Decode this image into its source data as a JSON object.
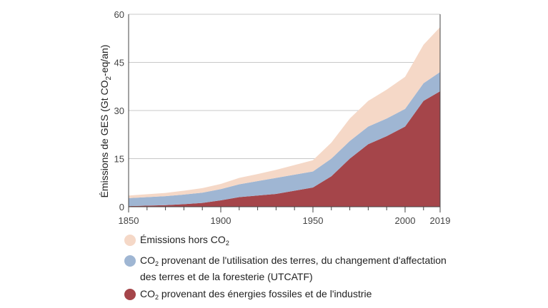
{
  "chart_data": {
    "type": "area",
    "stacked": true,
    "ylabel_parts": [
      "Émissions de GES (Gt CO",
      "2",
      "-eq/an)"
    ],
    "ylim": [
      0,
      60
    ],
    "yticks": [
      0,
      15,
      30,
      45,
      60
    ],
    "xlim": [
      1850,
      2019
    ],
    "xticks": [
      1850,
      1900,
      1950,
      2000,
      2019
    ],
    "grid": true,
    "legend_position": "bottom",
    "x": [
      1850,
      1870,
      1880,
      1890,
      1900,
      1910,
      1920,
      1930,
      1940,
      1950,
      1960,
      1970,
      1980,
      1990,
      2000,
      2010,
      2019
    ],
    "series": [
      {
        "key": "fossil",
        "name_parts": [
          "CO",
          "2",
          " provenant des énergies fossiles et de l'industrie"
        ],
        "color": "#a5454a",
        "values": [
          0.2,
          0.5,
          0.8,
          1.2,
          2,
          3,
          3.5,
          4,
          5,
          6,
          9.5,
          15,
          19.5,
          22,
          25,
          33,
          36
        ]
      },
      {
        "key": "lulucf",
        "name_parts": [
          "CO",
          "2",
          " provenant de l'utilisation des terres, du changement d'affectation des terres et de la foresterie (UTCATF)"
        ],
        "color": "#9fb6d3",
        "values": [
          2.5,
          2.8,
          3,
          3.2,
          3.5,
          4,
          4.5,
          5,
          5,
          5,
          5.5,
          5.5,
          5.5,
          5.5,
          5.5,
          5.5,
          6
        ]
      },
      {
        "key": "nonco2",
        "name_parts": [
          "Émissions hors CO",
          "2",
          ""
        ],
        "color": "#f5d8c7",
        "values": [
          0.8,
          1,
          1.2,
          1.4,
          1.6,
          2,
          2.2,
          2.5,
          3,
          3.5,
          5,
          7,
          8,
          9,
          10,
          12,
          14
        ]
      }
    ],
    "legend_order": [
      "nonco2",
      "lulucf",
      "fossil"
    ]
  }
}
